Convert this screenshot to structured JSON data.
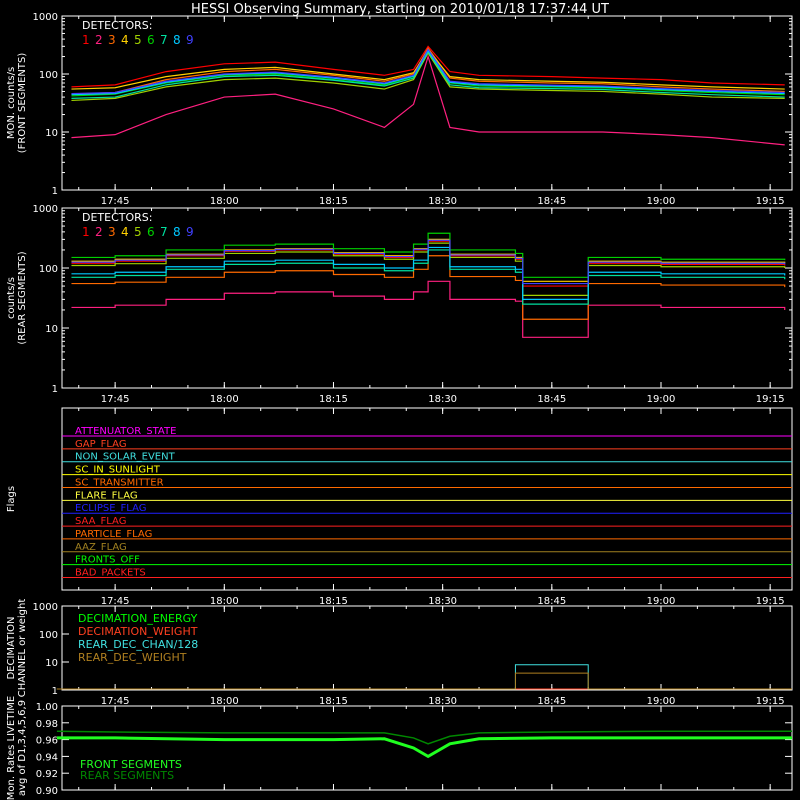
{
  "title": "HESSI Observing Summary, starting on 2010/01/18 17:37:44 UT",
  "time_ticks": [
    "17:45",
    "18:00",
    "18:15",
    "18:30",
    "18:45",
    "19:00",
    "19:15"
  ],
  "detector_colors": [
    "#ff0000",
    "#ff2050",
    "#ff6a00",
    "#ffd000",
    "#a0d000",
    "#00d000",
    "#00e0a0",
    "#00c8ff",
    "#4040ff"
  ],
  "chart_data": [
    {
      "type": "line",
      "panel": "front",
      "ylabel": "MON. counts/s\n(FRONT SEGMENTS)",
      "ylim": [
        1,
        1000
      ],
      "yscale": "log",
      "yticks": [
        "1",
        "10",
        "100",
        "1000"
      ],
      "legend_title": "DETECTORS:",
      "legend_items": [
        "1",
        "2",
        "3",
        "4",
        "5",
        "6",
        "7",
        "8",
        "9"
      ],
      "x": [
        "17:39",
        "17:45",
        "17:52",
        "18:00",
        "18:07",
        "18:15",
        "18:22",
        "18:26",
        "18:28",
        "18:31",
        "18:35",
        "18:45",
        "18:52",
        "19:00",
        "19:07",
        "19:17"
      ],
      "series": [
        {
          "name": "1",
          "color": "#ff0000",
          "values": [
            60,
            65,
            110,
            150,
            160,
            120,
            95,
            120,
            300,
            110,
            95,
            90,
            85,
            80,
            70,
            65
          ]
        },
        {
          "name": "2",
          "color": "#ff2080",
          "values": [
            8,
            9,
            20,
            40,
            45,
            25,
            12,
            30,
            200,
            12,
            10,
            10,
            10,
            9,
            8,
            6
          ]
        },
        {
          "name": "3",
          "color": "#ff6a00",
          "values": [
            45,
            48,
            80,
            110,
            120,
            95,
            75,
            100,
            280,
            85,
            75,
            70,
            68,
            60,
            55,
            50
          ]
        },
        {
          "name": "4",
          "color": "#ffd000",
          "values": [
            55,
            58,
            90,
            120,
            130,
            100,
            80,
            105,
            260,
            90,
            80,
            75,
            72,
            65,
            60,
            55
          ]
        },
        {
          "name": "5",
          "color": "#a0d000",
          "values": [
            35,
            38,
            60,
            80,
            85,
            70,
            55,
            80,
            230,
            60,
            55,
            52,
            50,
            45,
            40,
            38
          ]
        },
        {
          "name": "6",
          "color": "#00d000",
          "values": [
            42,
            45,
            70,
            95,
            100,
            80,
            65,
            90,
            250,
            70,
            62,
            60,
            58,
            52,
            48,
            44
          ]
        },
        {
          "name": "7",
          "color": "#00e0a0",
          "values": [
            38,
            40,
            65,
            90,
            95,
            78,
            62,
            85,
            240,
            65,
            58,
            56,
            54,
            48,
            44,
            40
          ]
        },
        {
          "name": "8",
          "color": "#00c8ff",
          "values": [
            44,
            46,
            72,
            98,
            105,
            85,
            68,
            92,
            255,
            72,
            65,
            62,
            60,
            54,
            50,
            46
          ]
        },
        {
          "name": "9",
          "color": "#4040ff",
          "values": [
            46,
            48,
            75,
            100,
            108,
            88,
            70,
            95,
            265,
            75,
            68,
            64,
            62,
            56,
            52,
            48
          ]
        }
      ]
    },
    {
      "type": "line",
      "panel": "rear",
      "ylabel": "counts/s\n(REAR SEGMENTS)",
      "ylim": [
        1,
        1000
      ],
      "yscale": "log",
      "yticks": [
        "1",
        "10",
        "100",
        "1000"
      ],
      "legend_title": "DETECTORS:",
      "legend_items": [
        "1",
        "2",
        "3",
        "4",
        "5",
        "6",
        "7",
        "8",
        "9"
      ],
      "x": [
        "17:39",
        "17:45",
        "17:52",
        "18:00",
        "18:07",
        "18:15",
        "18:22",
        "18:26",
        "18:28",
        "18:31",
        "18:40",
        "18:41",
        "18:49",
        "18:50",
        "19:00",
        "19:17"
      ],
      "series": [
        {
          "name": "1",
          "color": "#ff0000",
          "values": [
            120,
            130,
            160,
            190,
            200,
            170,
            150,
            200,
            280,
            160,
            140,
            50,
            50,
            120,
            115,
            110
          ]
        },
        {
          "name": "2",
          "color": "#ff2080",
          "values": [
            22,
            24,
            30,
            38,
            40,
            34,
            30,
            40,
            60,
            30,
            28,
            7,
            7,
            24,
            22,
            20
          ]
        },
        {
          "name": "3",
          "color": "#ff6a00",
          "values": [
            55,
            58,
            70,
            85,
            90,
            78,
            70,
            95,
            160,
            72,
            62,
            14,
            14,
            55,
            52,
            48
          ]
        },
        {
          "name": "4",
          "color": "#ffd000",
          "values": [
            130,
            140,
            170,
            200,
            210,
            180,
            160,
            210,
            300,
            170,
            150,
            60,
            60,
            130,
            125,
            120
          ]
        },
        {
          "name": "5",
          "color": "#a0d000",
          "values": [
            110,
            118,
            145,
            175,
            185,
            160,
            140,
            185,
            260,
            150,
            130,
            35,
            35,
            110,
            105,
            100
          ]
        },
        {
          "name": "6",
          "color": "#00d000",
          "values": [
            150,
            160,
            200,
            240,
            250,
            210,
            185,
            250,
            380,
            200,
            175,
            70,
            70,
            150,
            140,
            135
          ]
        },
        {
          "name": "7",
          "color": "#00e0a0",
          "values": [
            70,
            75,
            95,
            115,
            120,
            100,
            90,
            120,
            200,
            95,
            85,
            25,
            25,
            75,
            70,
            65
          ]
        },
        {
          "name": "8",
          "color": "#00c8ff",
          "values": [
            80,
            85,
            105,
            130,
            135,
            115,
            100,
            135,
            220,
            105,
            95,
            30,
            30,
            85,
            80,
            75
          ]
        },
        {
          "name": "9",
          "color": "#4040ff",
          "values": [
            125,
            135,
            165,
            195,
            205,
            175,
            155,
            205,
            290,
            165,
            145,
            55,
            55,
            125,
            120,
            115
          ]
        }
      ]
    },
    {
      "type": "line",
      "panel": "decimation",
      "ylabel": "DECIMATION\nCHANNEL or weight",
      "ylim": [
        1,
        1000
      ],
      "yscale": "log",
      "yticks": [
        "1",
        "10",
        "100",
        "1000"
      ],
      "legend_items": [
        "DECIMATION_ENERGY",
        "DECIMATION_WEIGHT",
        "REAR_DEC_CHAN/128",
        "REAR_DEC_WEIGHT"
      ],
      "series": [
        {
          "name": "DECIMATION_ENERGY",
          "color": "#00ff00",
          "x": [
            "17:37",
            "19:18"
          ],
          "values": [
            1,
            1
          ]
        },
        {
          "name": "DECIMATION_WEIGHT",
          "color": "#ff4020",
          "x": [
            "17:37",
            "19:18"
          ],
          "values": [
            1,
            1
          ]
        },
        {
          "name": "REAR_DEC_CHAN/128",
          "color": "#40e0e0",
          "x": [
            "17:37",
            "18:40",
            "18:40",
            "18:50",
            "18:50",
            "19:18"
          ],
          "values": [
            1,
            1,
            8,
            8,
            1,
            1
          ]
        },
        {
          "name": "REAR_DEC_WEIGHT",
          "color": "#b08020",
          "x": [
            "17:37",
            "18:40",
            "18:40",
            "18:50",
            "18:50",
            "19:18"
          ],
          "values": [
            1,
            1,
            4,
            4,
            1,
            1
          ]
        }
      ]
    },
    {
      "type": "line",
      "panel": "livetime",
      "ylabel": "Mon. Rates LIVETIME\navg of D1,3,4,5,6,9",
      "ylim": [
        0.9,
        1.0
      ],
      "yticks": [
        "0.90",
        "0.92",
        "0.94",
        "0.96",
        "0.98",
        "1.00"
      ],
      "x": [
        "17:37",
        "17:45",
        "18:00",
        "18:15",
        "18:22",
        "18:26",
        "18:28",
        "18:31",
        "18:35",
        "18:45",
        "19:00",
        "19:18"
      ],
      "legend_items": [
        "FRONT SEGMENTS",
        "REAR SEGMENTS"
      ],
      "series": [
        {
          "name": "FRONT SEGMENTS",
          "color": "#20ff20",
          "values": [
            0.962,
            0.962,
            0.96,
            0.96,
            0.961,
            0.95,
            0.94,
            0.955,
            0.961,
            0.962,
            0.962,
            0.962
          ]
        },
        {
          "name": "REAR SEGMENTS",
          "color": "#008800",
          "values": [
            0.97,
            0.969,
            0.968,
            0.968,
            0.968,
            0.962,
            0.955,
            0.964,
            0.968,
            0.969,
            0.97,
            0.97
          ]
        }
      ]
    }
  ],
  "flags": {
    "ylabel": "Flags",
    "items": [
      {
        "label": "ATTENUATOR_STATE",
        "color": "#ff00ff"
      },
      {
        "label": "GAP_FLAG",
        "color": "#ff4020"
      },
      {
        "label": "NON_SOLAR_EVENT",
        "color": "#40e0e0"
      },
      {
        "label": "SC_IN_SUNLIGHT",
        "color": "#ffff00"
      },
      {
        "label": "SC_TRANSMITTER",
        "color": "#ff6a00"
      },
      {
        "label": "FLARE_FLAG",
        "color": "#ffff40"
      },
      {
        "label": "ECLIPSE_FLAG",
        "color": "#2020ff"
      },
      {
        "label": "SAA_FLAG",
        "color": "#ff2020"
      },
      {
        "label": "PARTICLE_FLAG",
        "color": "#ff6a00"
      },
      {
        "label": "AAZ_FLAG",
        "color": "#a08020"
      },
      {
        "label": "FRONTS_OFF",
        "color": "#00ff00"
      },
      {
        "label": "BAD_PACKETS",
        "color": "#ff2020"
      }
    ]
  }
}
